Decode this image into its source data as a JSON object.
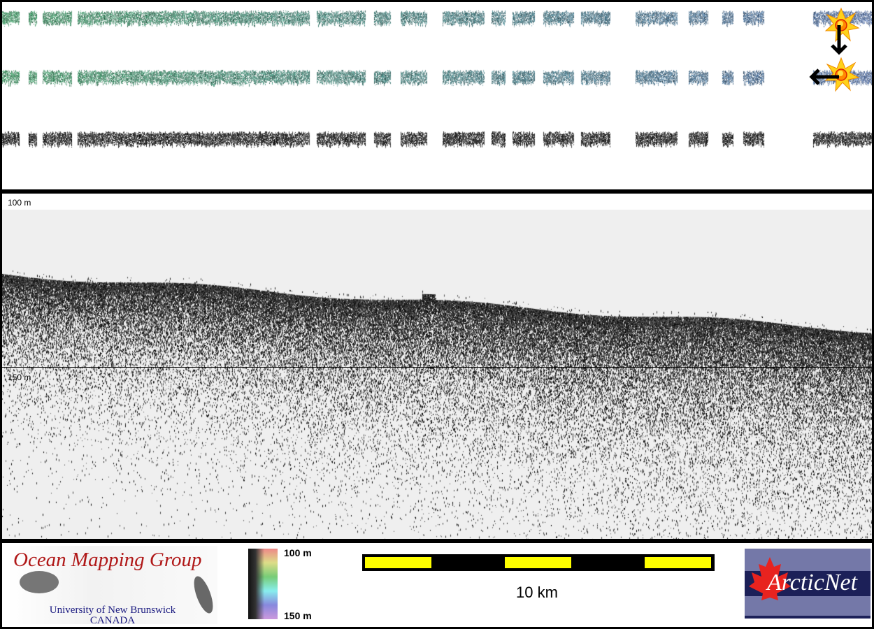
{
  "strips_panel": {
    "rows": [
      "backscatter-colored",
      "backscatter-colored",
      "backscatter-gray"
    ],
    "colors": {
      "start": "#3c8a5c",
      "end": "#4a6494",
      "gray": "#111111"
    },
    "icons": [
      "sun-burst-icon",
      "arrow-down-icon",
      "sun-burst-icon",
      "arrow-left-icon"
    ]
  },
  "echogram": {
    "depth_top": "100 m",
    "depth_mid": "150 m",
    "background": "#efefef"
  },
  "legend": {
    "logo_left": {
      "title": "Ocean Mapping Group",
      "line1": "University of New Brunswick",
      "line2": "CANADA"
    },
    "colorbar": {
      "top_label": "100 m",
      "bottom_label": "150 m"
    },
    "scale_bar": {
      "label": "10 km",
      "colors": [
        "#ffff00",
        "#000000"
      ]
    },
    "logo_right": {
      "text": "ArcticNet"
    }
  }
}
